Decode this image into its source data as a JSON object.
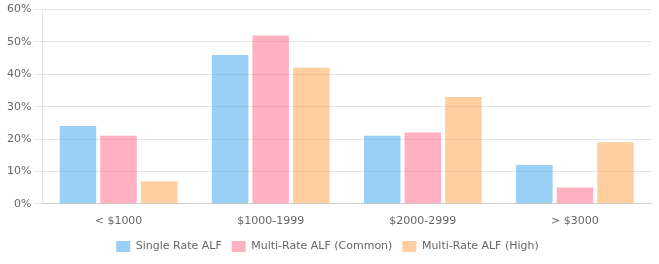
{
  "chart_data": {
    "type": "bar",
    "categories": [
      "< $1000",
      "$1000-1999",
      "$2000-2999",
      "> $3000"
    ],
    "series": [
      {
        "name": "Single Rate ALF",
        "values": [
          24,
          46,
          21,
          12
        ]
      },
      {
        "name": "Multi-Rate ALF (Common)",
        "values": [
          21,
          52,
          22,
          5
        ]
      },
      {
        "name": "Multi-Rate ALF (High)",
        "values": [
          7,
          42,
          33,
          19
        ]
      }
    ],
    "ylim": [
      0,
      60
    ],
    "yticks": [
      {
        "value": 0,
        "label": "0%"
      },
      {
        "value": 10,
        "label": "10%"
      },
      {
        "value": 20,
        "label": "20%"
      },
      {
        "value": 30,
        "label": "30%"
      },
      {
        "value": 40,
        "label": "40%"
      },
      {
        "value": 50,
        "label": "50%"
      },
      {
        "value": 60,
        "label": "60%"
      }
    ],
    "grid": "y",
    "legend": "bottom"
  }
}
